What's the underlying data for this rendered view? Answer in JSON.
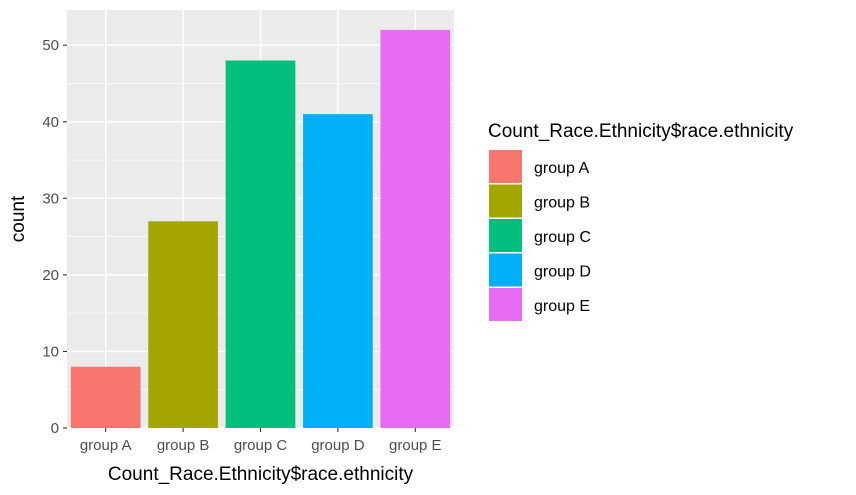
{
  "chart_data": {
    "type": "bar",
    "categories": [
      "group A",
      "group B",
      "group C",
      "group D",
      "group E"
    ],
    "values": [
      8,
      27,
      48,
      41,
      52
    ],
    "colors": [
      "#F8766D",
      "#A3A500",
      "#00BF7D",
      "#00B0F6",
      "#E76BF3"
    ],
    "xlabel": "Count_Race.Ethnicity$race.ethnicity",
    "ylabel": "count",
    "ylim": [
      0,
      54.6
    ],
    "yticks": [
      0,
      10,
      20,
      30,
      40,
      50
    ],
    "grid": true,
    "panel_background": "#EBEBEB",
    "gridline_color": "#FFFFFF",
    "legend": {
      "title": "Count_Race.Ethnicity$race.ethnicity",
      "position": "right",
      "entries": [
        "group A",
        "group B",
        "group C",
        "group D",
        "group E"
      ]
    }
  }
}
